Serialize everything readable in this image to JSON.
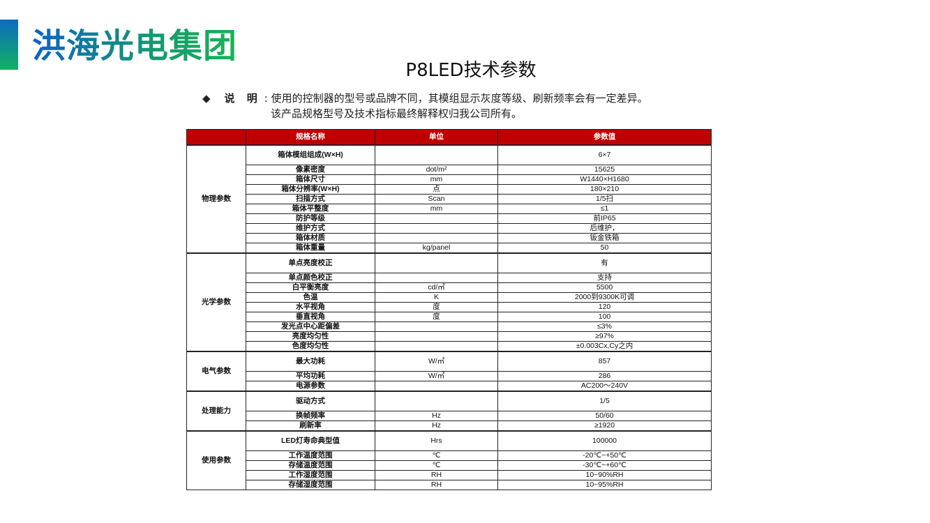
{
  "logo": "洪海光电集团",
  "title": "P8LED技术参数",
  "note": {
    "bullet": "◆",
    "label": "说 明",
    "line1": ": 使用的控制器的型号或品牌不同，其模组显示灰度等级、刷新频率会有一定差异。",
    "line2": "该产品规格型号及技术指标最终解释权归我公司所有。"
  },
  "table": {
    "headers": [
      "",
      "规格名称",
      "单位",
      "参数值"
    ],
    "groups": [
      {
        "name": "物理参数",
        "rows": [
          [
            "箱体模组组成(W×H)",
            "",
            "6×7"
          ],
          [
            "像素密度",
            "dot/m²",
            "15625"
          ],
          [
            "箱体尺寸",
            "mm",
            "W1440×H1680"
          ],
          [
            "箱体分辨率(W×H)",
            "点",
            "180×210"
          ],
          [
            "扫描方式",
            "Scan",
            "1/5扫"
          ],
          [
            "箱体平整度",
            "mm",
            "≤1"
          ],
          [
            "防护等级",
            "",
            "前IP65"
          ],
          [
            "维护方式",
            "",
            "后维护，"
          ],
          [
            "箱体材质",
            "",
            "钣金铁箱"
          ],
          [
            "箱体重量",
            "kg/panel",
            "50"
          ]
        ]
      },
      {
        "name": "光学参数",
        "rows": [
          [
            "单点亮度校正",
            "",
            "有"
          ],
          [
            "单点颜色校正",
            "",
            "支持"
          ],
          [
            "白平衡亮度",
            "cd/㎡",
            "5500"
          ],
          [
            "色温",
            "K",
            "2000到9300K可调"
          ],
          [
            "水平视角",
            "度",
            "120"
          ],
          [
            "垂直视角",
            "度",
            "100"
          ],
          [
            "发光点中心距偏差",
            "",
            "≤3%"
          ],
          [
            "亮度均匀性",
            "",
            "≥97%"
          ],
          [
            "色度均匀性",
            "",
            "±0.003Cx,Cy之内"
          ]
        ]
      },
      {
        "name": "电气参数",
        "rows": [
          [
            "最大功耗",
            "W/㎡",
            "857"
          ],
          [
            "平均功耗",
            "W/㎡",
            "286"
          ],
          [
            "电源参数",
            "",
            "AC200～240V"
          ]
        ]
      },
      {
        "name": "处理能力",
        "rows": [
          [
            "驱动方式",
            "",
            "1/5"
          ],
          [
            "换帧频率",
            "Hz",
            "50/60"
          ],
          [
            "刷新率",
            "Hz",
            "≥1920"
          ]
        ]
      },
      {
        "name": "使用参数",
        "rows": [
          [
            "LED灯寿命典型值",
            "Hrs",
            "100000"
          ],
          [
            "工作温度范围",
            "℃",
            "-20℃~+50℃"
          ],
          [
            "存储温度范围",
            "℃",
            "-30℃~+60℃"
          ],
          [
            "工作湿度范围",
            "RH",
            "10~90%RH"
          ],
          [
            "存储湿度范围",
            "RH",
            "10~95%RH"
          ]
        ]
      }
    ]
  }
}
